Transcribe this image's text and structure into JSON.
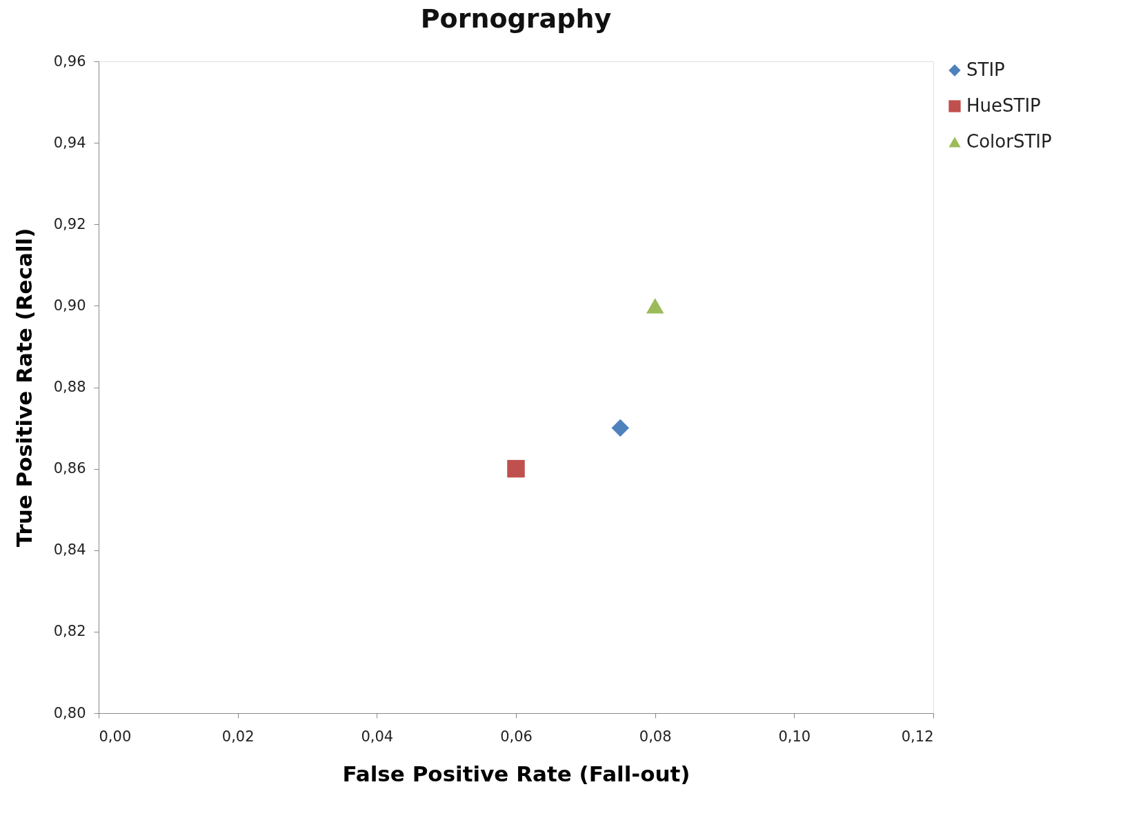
{
  "chart_data": {
    "type": "scatter",
    "title": "Pornography",
    "xlabel": "False Positive Rate (Fall-out)",
    "ylabel": "True Positive Rate (Recall)",
    "series": [
      {
        "name": "STIP",
        "color": "#4f81bd",
        "marker": "diamond",
        "x": [
          0.075
        ],
        "values": [
          0.87
        ]
      },
      {
        "name": "HueSTIP",
        "color": "#c0504d",
        "marker": "square",
        "x": [
          0.06
        ],
        "values": [
          0.86
        ]
      },
      {
        "name": "ColorSTIP",
        "color": "#9bbb59",
        "marker": "triangle",
        "x": [
          0.08
        ],
        "values": [
          0.9
        ]
      }
    ],
    "xlim": [
      0,
      0.12
    ],
    "ylim": [
      0.8,
      0.96
    ],
    "xticks": [
      {
        "value": 0,
        "label": "0,00"
      },
      {
        "value": 0.02,
        "label": "0,02"
      },
      {
        "value": 0.04,
        "label": "0,04"
      },
      {
        "value": 0.06,
        "label": "0,06"
      },
      {
        "value": 0.08,
        "label": "0,08"
      },
      {
        "value": 0.1,
        "label": "0,10"
      },
      {
        "value": 0.12,
        "label": "0,12"
      }
    ],
    "yticks": [
      {
        "value": 0.8,
        "label": "0,80"
      },
      {
        "value": 0.82,
        "label": "0,82"
      },
      {
        "value": 0.84,
        "label": "0,84"
      },
      {
        "value": 0.86,
        "label": "0,86"
      },
      {
        "value": 0.88,
        "label": "0,88"
      },
      {
        "value": 0.9,
        "label": "0,90"
      },
      {
        "value": 0.92,
        "label": "0,92"
      },
      {
        "value": 0.94,
        "label": "0,94"
      },
      {
        "value": 0.96,
        "label": "0,96"
      }
    ],
    "grid": false,
    "legend": "right"
  }
}
